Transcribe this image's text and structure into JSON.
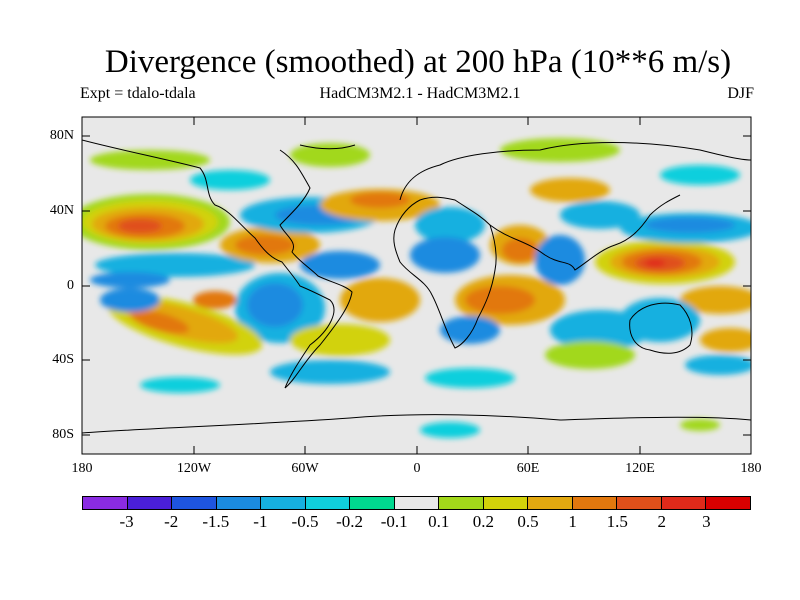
{
  "title": "Divergence (smoothed) at 200 hPa (10**6 m/s)",
  "subtitle_left": "Expt = tdalo-tdala",
  "subtitle_center": "HadCM3M2.1 - HadCM3M2.1",
  "subtitle_right": "DJF",
  "lat_labels": [
    "80N",
    "40N",
    "0",
    "40S",
    "80S"
  ],
  "lon_labels": [
    "180",
    "120W",
    "60W",
    "0",
    "60E",
    "120E",
    "180"
  ],
  "colorbar": {
    "labels": [
      "-3",
      "-2",
      "-1.5",
      "-1",
      "-0.5",
      "-0.2",
      "-0.1",
      "0.1",
      "0.2",
      "0.5",
      "1",
      "1.5",
      "2",
      "3"
    ],
    "colors": [
      "#8a2be2",
      "#4a1fd8",
      "#1e55e0",
      "#1b8be0",
      "#16b0e0",
      "#10cfdd",
      "#00d88f",
      "#e8e8e8",
      "#a2d81a",
      "#d2d20a",
      "#e2a810",
      "#e2780e",
      "#e0501a",
      "#e02a1a",
      "#d80000"
    ]
  },
  "map_data": {
    "lat_range": [
      -90,
      90
    ],
    "lon_range": [
      -180,
      180
    ],
    "background_value": "0",
    "regions": [
      {
        "name": "north-pacific-positive",
        "lat": 34,
        "lon": -145,
        "value": 1.5
      },
      {
        "name": "north-pacific-core",
        "lat": 34,
        "lon": -147,
        "value": 2
      },
      {
        "name": "south-pacific-positive",
        "lat": -22,
        "lon": -145,
        "value": 1.5
      },
      {
        "name": "tropical-pacific-negative",
        "lat": 10,
        "lon": -130,
        "value": -0.5
      },
      {
        "name": "east-pacific-negative",
        "lat": -15,
        "lon": -100,
        "value": -1
      },
      {
        "name": "south-america-negative",
        "lat": -12,
        "lon": -60,
        "value": -1
      },
      {
        "name": "north-atlantic-negative",
        "lat": 35,
        "lon": -50,
        "value": -0.5
      },
      {
        "name": "caribbean-positive",
        "lat": 20,
        "lon": -75,
        "value": 1
      },
      {
        "name": "africa-positive",
        "lat": 5,
        "lon": 30,
        "value": 1
      },
      {
        "name": "east-africa-positive",
        "lat": -10,
        "lon": 45,
        "value": 1
      },
      {
        "name": "indian-ocean-negative",
        "lat": 5,
        "lon": 75,
        "value": -1
      },
      {
        "name": "west-pacific-positive",
        "lat": 10,
        "lon": 125,
        "value": 1.5
      },
      {
        "name": "west-pacific-core",
        "lat": 10,
        "lon": 130,
        "value": 2
      },
      {
        "name": "east-asia-negative",
        "lat": 35,
        "lon": 120,
        "value": -1
      },
      {
        "name": "australia-negative",
        "lat": -25,
        "lon": 130,
        "value": -1
      }
    ]
  }
}
